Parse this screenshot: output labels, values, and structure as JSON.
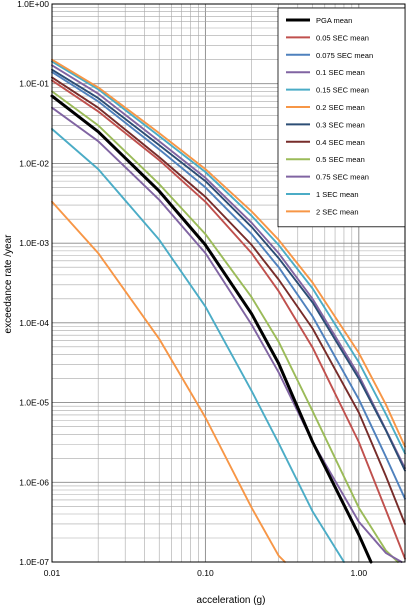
{
  "chart_data": {
    "type": "line",
    "xlabel": "acceleration (g)",
    "ylabel": "exceedance rate /year",
    "x_scale": "log",
    "y_scale": "log",
    "xlim": [
      0.01,
      2
    ],
    "ylim": [
      1e-07,
      1
    ],
    "x_ticks": [
      {
        "value": 0.01,
        "label": "0.01"
      },
      {
        "value": 0.1,
        "label": "0.10"
      },
      {
        "value": 1,
        "label": "1.00"
      }
    ],
    "y_ticks": [
      {
        "value": 1,
        "label": "1.0E+00"
      },
      {
        "value": 0.1,
        "label": "1.0E-01"
      },
      {
        "value": 0.01,
        "label": "1.0E-02"
      },
      {
        "value": 0.001,
        "label": "1.0E-03"
      },
      {
        "value": 0.0001,
        "label": "1.0E-04"
      },
      {
        "value": 1e-05,
        "label": "1.0E-05"
      },
      {
        "value": 1e-06,
        "label": "1.0E-06"
      },
      {
        "value": 1e-07,
        "label": "1.0E-07"
      }
    ],
    "grid": "major and minor (log decades)",
    "legend_position": "top-right",
    "series": [
      {
        "name": "PGA mean",
        "color": "#000000",
        "x": [
          0.01,
          0.02,
          0.05,
          0.1,
          0.2,
          0.3,
          0.5,
          1.0,
          1.2
        ],
        "y": [
          0.07,
          0.025,
          0.0045,
          0.00095,
          0.00013,
          3.1e-05,
          3.2e-06,
          2.2e-07,
          1e-07
        ]
      },
      {
        "name": "0.05 SEC mean",
        "color": "#C0504D",
        "x": [
          0.01,
          0.02,
          0.05,
          0.1,
          0.2,
          0.3,
          0.5,
          1.0,
          1.5,
          2.0
        ],
        "y": [
          0.11,
          0.045,
          0.011,
          0.0033,
          0.00075,
          0.00025,
          4.9e-05,
          3.2e-06,
          4.5e-07,
          1.1e-07
        ]
      },
      {
        "name": "0.075 SEC mean",
        "color": "#4F81BD",
        "x": [
          0.01,
          0.02,
          0.05,
          0.1,
          0.2,
          0.3,
          0.5,
          1.0,
          1.5,
          2.0
        ],
        "y": [
          0.14,
          0.06,
          0.015,
          0.005,
          0.0013,
          0.0005,
          0.00012,
          1.1e-05,
          2.1e-06,
          6.2e-07
        ]
      },
      {
        "name": "0.1 SEC mean",
        "color": "#8064A2",
        "x": [
          0.01,
          0.02,
          0.05,
          0.1,
          0.2,
          0.3,
          0.5,
          1.0,
          1.5,
          2.0
        ],
        "y": [
          0.17,
          0.075,
          0.019,
          0.0066,
          0.0018,
          0.00075,
          0.0002,
          2.2e-05,
          4.6e-06,
          1.5e-06
        ]
      },
      {
        "name": "0.15 SEC mean",
        "color": "#4BACC6",
        "x": [
          0.01,
          0.02,
          0.05,
          0.1,
          0.2,
          0.3,
          0.5,
          1.0,
          1.5,
          2.0
        ],
        "y": [
          0.19,
          0.085,
          0.022,
          0.0078,
          0.0022,
          0.00095,
          0.00027,
          3.2e-05,
          7.2e-06,
          2.3e-06
        ]
      },
      {
        "name": "0.2 SEC mean",
        "color": "#F79646",
        "x": [
          0.01,
          0.02,
          0.05,
          0.1,
          0.2,
          0.3,
          0.5,
          1.0,
          1.5,
          2.0
        ],
        "y": [
          0.2,
          0.09,
          0.024,
          0.0085,
          0.0025,
          0.0011,
          0.00032,
          4.2e-05,
          9.5e-06,
          2.8e-06
        ]
      },
      {
        "name": "0.3 SEC mean",
        "color": "#2C4D75",
        "x": [
          0.01,
          0.02,
          0.05,
          0.1,
          0.2,
          0.3,
          0.5,
          1.0,
          1.5,
          2.0
        ],
        "y": [
          0.15,
          0.066,
          0.017,
          0.006,
          0.0016,
          0.00065,
          0.00018,
          2e-05,
          4.5e-06,
          1.4e-06
        ]
      },
      {
        "name": "0.4 SEC mean",
        "color": "#772C2A",
        "x": [
          0.01,
          0.02,
          0.05,
          0.1,
          0.2,
          0.3,
          0.5,
          1.0,
          1.5,
          2.0
        ],
        "y": [
          0.12,
          0.05,
          0.012,
          0.0038,
          0.00095,
          0.00035,
          8.5e-05,
          7.5e-06,
          1.2e-06,
          3e-07
        ]
      },
      {
        "name": "0.5 SEC mean",
        "color": "#9BBB59",
        "x": [
          0.01,
          0.02,
          0.05,
          0.1,
          0.2,
          0.3,
          0.5,
          1.0,
          1.5,
          1.8
        ],
        "y": [
          0.08,
          0.03,
          0.0055,
          0.0013,
          0.00021,
          5.8e-05,
          7.8e-06,
          4.8e-07,
          1.4e-07,
          1e-07
        ]
      },
      {
        "name": "0.75 SEC mean",
        "color": "#8064A2",
        "x": [
          0.01,
          0.02,
          0.05,
          0.1,
          0.2,
          0.3,
          0.5,
          1.0,
          1.5,
          1.9
        ],
        "y": [
          0.05,
          0.019,
          0.0035,
          0.00075,
          9.5e-05,
          2.4e-05,
          3.2e-06,
          3.2e-07,
          1.3e-07,
          1e-07
        ]
      },
      {
        "name": "1 SEC mean",
        "color": "#4BACC6",
        "x": [
          0.01,
          0.02,
          0.05,
          0.1,
          0.2,
          0.3,
          0.5,
          0.8
        ],
        "y": [
          0.027,
          0.0085,
          0.0011,
          0.00016,
          1.4e-05,
          3.1e-06,
          4.3e-07,
          1e-07
        ]
      },
      {
        "name": "2 SEC mean",
        "color": "#F79646",
        "x": [
          0.01,
          0.02,
          0.05,
          0.1,
          0.2,
          0.3,
          0.33
        ],
        "y": [
          0.0033,
          0.00075,
          6.3e-05,
          6.5e-06,
          4.8e-07,
          1.2e-07,
          1e-07
        ]
      }
    ]
  }
}
